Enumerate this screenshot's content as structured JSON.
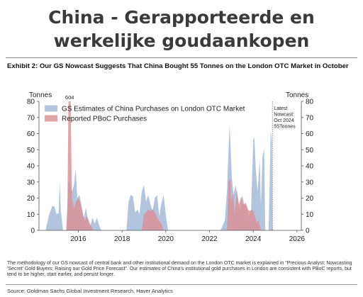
{
  "slide": {
    "title_line1": "China - Gerapporteerde en",
    "title_line2": "werkelijke goudaankopen"
  },
  "exhibit": {
    "title": "Exhibit 2: Our GS Nowcast Suggests That China Bought 55 Tonnes on the London OTC Market in October",
    "note": "The methodology of our GS nowcast of central bank and other institutional demand on the London OTC market is explained in \"Precious Analyst: Nowcasting 'Secret' Gold Buyers; Raising our Gold Price Forecast\". Our estimates of China's institutional gold purchases in London are consistent with PBoC reports, but tend to be higher, start earlier, and persist longer.",
    "source": "Source: Goldman Sachs Global Investment Research, Haver Analytics"
  },
  "chart_data": {
    "type": "area",
    "ylabel_left": "Tonnes",
    "ylabel_right": "Tonnes",
    "xlim": [
      2014.2,
      2026.2
    ],
    "ylim": [
      0,
      80
    ],
    "xticks": [
      2016,
      2018,
      2020,
      2022,
      2024,
      2026
    ],
    "yticks": [
      0,
      10,
      20,
      30,
      40,
      50,
      60,
      70,
      80
    ],
    "grid": false,
    "legend_position": "top-left",
    "colors": {
      "gs": "#a8bfdc",
      "pboc": "#dc8f96",
      "marker": "#7d8fa8"
    },
    "series": [
      {
        "name": "GS Estimates of China Purchases on London OTC Market",
        "points": [
          [
            2014.5,
            0
          ],
          [
            2014.65,
            9
          ],
          [
            2014.8,
            15
          ],
          [
            2014.9,
            15
          ],
          [
            2015.0,
            10
          ],
          [
            2015.1,
            11
          ],
          [
            2015.15,
            30
          ],
          [
            2015.2,
            12
          ],
          [
            2015.3,
            0
          ],
          [
            2015.45,
            0
          ],
          [
            2015.55,
            30
          ],
          [
            2015.62,
            31
          ],
          [
            2015.7,
            24
          ],
          [
            2015.8,
            28
          ],
          [
            2015.88,
            38
          ],
          [
            2015.95,
            20
          ],
          [
            2016.05,
            22
          ],
          [
            2016.15,
            15
          ],
          [
            2016.25,
            8
          ],
          [
            2016.35,
            14
          ],
          [
            2016.45,
            5
          ],
          [
            2016.55,
            3
          ],
          [
            2016.65,
            8
          ],
          [
            2016.75,
            4
          ],
          [
            2016.85,
            8
          ],
          [
            2016.95,
            3
          ],
          [
            2017.05,
            0
          ],
          [
            2017.7,
            0
          ],
          [
            2017.8,
            0
          ],
          [
            2018.2,
            0
          ],
          [
            2018.3,
            18
          ],
          [
            2018.4,
            22
          ],
          [
            2018.5,
            21
          ],
          [
            2018.6,
            11
          ],
          [
            2018.7,
            13
          ],
          [
            2018.8,
            10
          ],
          [
            2018.9,
            24
          ],
          [
            2019.0,
            28
          ],
          [
            2019.1,
            18
          ],
          [
            2019.2,
            22
          ],
          [
            2019.3,
            16
          ],
          [
            2019.4,
            12
          ],
          [
            2019.5,
            20
          ],
          [
            2019.6,
            22
          ],
          [
            2019.7,
            9
          ],
          [
            2019.8,
            17
          ],
          [
            2019.9,
            22
          ],
          [
            2020.0,
            10
          ],
          [
            2020.1,
            0
          ],
          [
            2022.5,
            0
          ],
          [
            2022.6,
            3
          ],
          [
            2022.7,
            6
          ],
          [
            2022.8,
            25
          ],
          [
            2022.87,
            50
          ],
          [
            2022.92,
            65
          ],
          [
            2022.97,
            50
          ],
          [
            2023.02,
            33
          ],
          [
            2023.1,
            22
          ],
          [
            2023.2,
            28
          ],
          [
            2023.3,
            18
          ],
          [
            2023.4,
            12
          ],
          [
            2023.5,
            22
          ],
          [
            2023.6,
            15
          ],
          [
            2023.7,
            16
          ],
          [
            2023.8,
            8
          ],
          [
            2023.9,
            12
          ],
          [
            2024.0,
            56
          ],
          [
            2024.05,
            58
          ],
          [
            2024.12,
            37
          ],
          [
            2024.2,
            24
          ],
          [
            2024.3,
            44
          ],
          [
            2024.35,
            15
          ],
          [
            2024.42,
            45
          ],
          [
            2024.5,
            51
          ],
          [
            2024.55,
            0
          ],
          [
            2024.7,
            0
          ],
          [
            2024.75,
            28
          ],
          [
            2024.8,
            62
          ],
          [
            2024.85,
            55
          ],
          [
            2024.88,
            0
          ]
        ]
      },
      {
        "name": "Reported PBoC Purchases",
        "points": [
          [
            2015.45,
            0
          ],
          [
            2015.5,
            15
          ],
          [
            2015.55,
            80
          ],
          [
            2015.65,
            80
          ],
          [
            2015.7,
            20
          ],
          [
            2015.8,
            14
          ],
          [
            2015.9,
            18
          ],
          [
            2016.0,
            20
          ],
          [
            2016.1,
            17
          ],
          [
            2016.2,
            10
          ],
          [
            2016.3,
            6
          ],
          [
            2016.4,
            9
          ],
          [
            2016.5,
            5
          ],
          [
            2016.6,
            2
          ],
          [
            2016.7,
            0
          ],
          [
            2018.9,
            0
          ],
          [
            2019.0,
            10
          ],
          [
            2019.1,
            11
          ],
          [
            2019.2,
            13
          ],
          [
            2019.3,
            12
          ],
          [
            2019.4,
            13
          ],
          [
            2019.5,
            11
          ],
          [
            2019.6,
            8
          ],
          [
            2019.7,
            6
          ],
          [
            2019.8,
            4
          ],
          [
            2019.9,
            0
          ],
          [
            2022.8,
            0
          ],
          [
            2022.87,
            30
          ],
          [
            2022.95,
            32
          ],
          [
            2023.0,
            18
          ],
          [
            2023.08,
            24
          ],
          [
            2023.15,
            10
          ],
          [
            2023.25,
            25
          ],
          [
            2023.35,
            16
          ],
          [
            2023.45,
            21
          ],
          [
            2023.55,
            16
          ],
          [
            2023.65,
            17
          ],
          [
            2023.75,
            13
          ],
          [
            2023.85,
            12
          ],
          [
            2023.95,
            13
          ],
          [
            2024.05,
            10
          ],
          [
            2024.15,
            5
          ],
          [
            2024.25,
            6
          ],
          [
            2024.35,
            0
          ]
        ]
      }
    ],
    "annotations": [
      {
        "text": "604",
        "x": 2015.6,
        "y": 80
      },
      {
        "text_lines": [
          "Latest",
          "Nowcast:",
          "Oct 2024",
          "55Tonnes"
        ],
        "x": 2024.88,
        "y": 55
      }
    ]
  }
}
